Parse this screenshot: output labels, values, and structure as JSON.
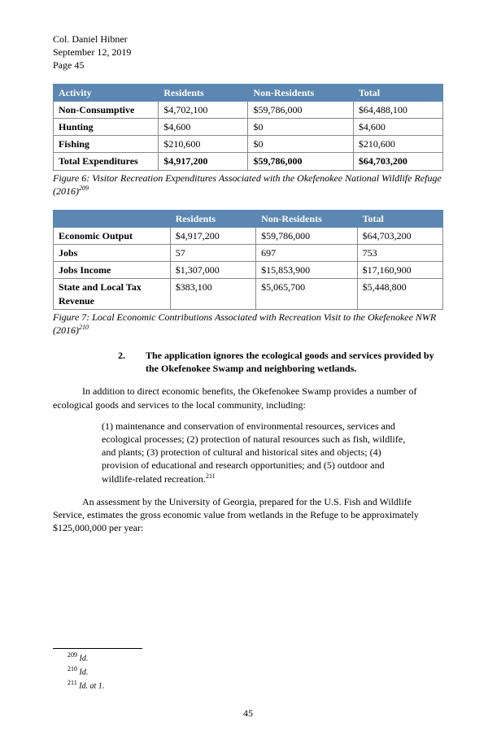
{
  "header": {
    "name": "Col. Daniel Hibner",
    "date": "September 12, 2019",
    "page": "Page 45"
  },
  "table1": {
    "headers": [
      "Activity",
      "Residents",
      "Non-Residents",
      "Total"
    ],
    "rows": [
      {
        "bold": true,
        "cells": [
          "Non-Consumptive",
          "$4,702,100",
          "$59,786,000",
          "$64,488,100"
        ]
      },
      {
        "bold": true,
        "cells": [
          "Hunting",
          "$4,600",
          "$0",
          "$4,600"
        ],
        "boldFirstOnly": true
      },
      {
        "bold": true,
        "cells": [
          "Fishing",
          "$210,600",
          "$0",
          "$210,600"
        ],
        "boldFirstOnly": true
      },
      {
        "bold": true,
        "cells": [
          "Total Expenditures",
          "$4,917,200",
          "$59,786,000",
          "$64,703,200"
        ]
      }
    ],
    "caption": "Figure 6: Visitor Recreation Expenditures Associated with the Okefenokee National Wildlife Refuge (2016)",
    "caption_fn": "209"
  },
  "table2": {
    "headers": [
      "",
      "Residents",
      "Non-Residents",
      "Total"
    ],
    "rows": [
      {
        "cells": [
          "Economic Output",
          "$4,917,200",
          "$59,786,000",
          "$64,703,200"
        ]
      },
      {
        "cells": [
          "Jobs",
          "57",
          "697",
          "753"
        ]
      },
      {
        "cells": [
          "Jobs Income",
          "$1,307,000",
          "$15,853,900",
          "$17,160,900"
        ]
      },
      {
        "cells": [
          "State and Local Tax Revenue",
          "$383,100",
          "$5,065,700",
          "$5,448,800"
        ]
      }
    ],
    "caption": "Figure 7: Local Economic Contributions Associated with Recreation Visit to the Okefenokee NWR (2016)",
    "caption_fn": "210"
  },
  "section": {
    "num": "2.",
    "title": "The application ignores the ecological goods and services provided by the Okefenokee Swamp and neighboring wetlands."
  },
  "para1": "In addition to direct economic benefits, the Okefenokee Swamp provides a number of ecological goods and services to the local community, including:",
  "quote": "(1) maintenance and conservation of environmental resources, services and ecological processes; (2) protection of natural resources such as fish, wildlife, and plants; (3) protection of cultural and historical sites and objects; (4) provision of educational and research opportunities; and (5) outdoor and wildlife-related recreation.",
  "quote_fn": "211",
  "para2": "An assessment by the University of Georgia, prepared for the U.S. Fish and Wildlife Service, estimates the gross economic value from wetlands in the Refuge to be approximately $125,000,000 per year:",
  "footnotes": [
    {
      "num": "209",
      "text": "Id."
    },
    {
      "num": "210",
      "text": "Id."
    },
    {
      "num": "211",
      "text": "Id. at 1."
    }
  ],
  "pageNumber": "45"
}
